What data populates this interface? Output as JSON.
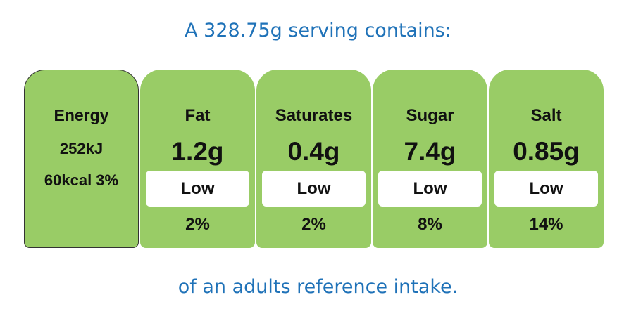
{
  "header": {
    "title": "A 328.75g serving contains:"
  },
  "energy": {
    "label": "Energy",
    "kj": "252kJ",
    "kcal": "60kcal 3%"
  },
  "nutrients": [
    {
      "name": "Fat",
      "amount": "1.2g",
      "level": "Low",
      "percent": "2%"
    },
    {
      "name": "Saturates",
      "amount": "0.4g",
      "level": "Low",
      "percent": "2%"
    },
    {
      "name": "Sugar",
      "amount": "7.4g",
      "level": "Low",
      "percent": "8%"
    },
    {
      "name": "Salt",
      "amount": "0.85g",
      "level": "Low",
      "percent": "14%"
    }
  ],
  "footer": {
    "text": "of an adults reference intake."
  }
}
